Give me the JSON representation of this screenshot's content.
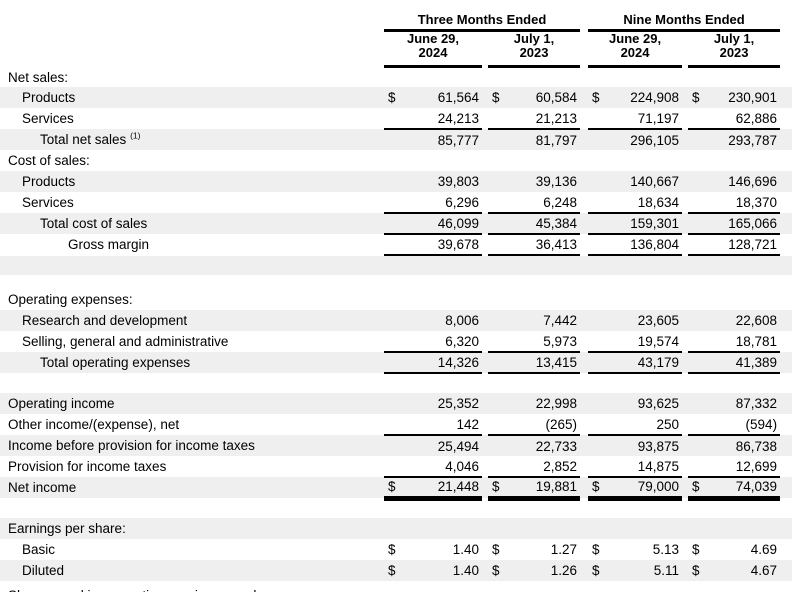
{
  "table": {
    "currency_symbol": "$",
    "period_groups": [
      "Three Months Ended",
      "Nine Months Ended"
    ],
    "column_headers": [
      "June 29,\n2024",
      "July 1,\n2023",
      "June 29,\n2024",
      "July 1,\n2023"
    ],
    "colors": {
      "row_shade": "#efefef",
      "rule": "#000000",
      "text": "#000000",
      "background": "#ffffff"
    },
    "rows": [
      {
        "kind": "section",
        "label": "Net sales:",
        "indent": 0,
        "shaded": false
      },
      {
        "kind": "data",
        "label": "Products",
        "indent": 1,
        "shaded": true,
        "dollar": true,
        "underline": "none",
        "values": [
          "61,564",
          "60,584",
          "224,908",
          "230,901"
        ]
      },
      {
        "kind": "data",
        "label": "Services",
        "indent": 1,
        "shaded": false,
        "dollar": false,
        "underline": "single",
        "values": [
          "24,213",
          "21,213",
          "71,197",
          "62,886"
        ]
      },
      {
        "kind": "data",
        "label": "Total net sales",
        "footnote": "(1)",
        "indent": 2,
        "shaded": true,
        "dollar": false,
        "underline": "none",
        "values": [
          "85,777",
          "81,797",
          "296,105",
          "293,787"
        ]
      },
      {
        "kind": "section",
        "label": "Cost of sales:",
        "indent": 0,
        "shaded": false
      },
      {
        "kind": "data",
        "label": "Products",
        "indent": 1,
        "shaded": true,
        "dollar": false,
        "underline": "none",
        "values": [
          "39,803",
          "39,136",
          "140,667",
          "146,696"
        ]
      },
      {
        "kind": "data",
        "label": "Services",
        "indent": 1,
        "shaded": false,
        "dollar": false,
        "underline": "single",
        "values": [
          "6,296",
          "6,248",
          "18,634",
          "18,370"
        ]
      },
      {
        "kind": "data",
        "label": "Total cost of sales",
        "indent": 2,
        "shaded": true,
        "dollar": false,
        "underline": "single",
        "values": [
          "46,099",
          "45,384",
          "159,301",
          "165,066"
        ]
      },
      {
        "kind": "data",
        "label": "Gross margin",
        "indent": 3,
        "shaded": false,
        "dollar": false,
        "underline": "single",
        "values": [
          "39,678",
          "36,413",
          "136,804",
          "128,721"
        ]
      },
      {
        "kind": "blank",
        "label": "",
        "shaded": true
      },
      {
        "kind": "spacer",
        "label": "",
        "shaded": false
      },
      {
        "kind": "section",
        "label": "Operating expenses:",
        "indent": 0,
        "shaded": false
      },
      {
        "kind": "data",
        "label": "Research and development",
        "indent": 1,
        "shaded": true,
        "dollar": false,
        "underline": "none",
        "values": [
          "8,006",
          "7,442",
          "23,605",
          "22,608"
        ]
      },
      {
        "kind": "data",
        "label": "Selling, general and administrative",
        "indent": 1,
        "shaded": false,
        "dollar": false,
        "underline": "single",
        "values": [
          "6,320",
          "5,973",
          "19,574",
          "18,781"
        ]
      },
      {
        "kind": "data",
        "label": "Total operating expenses",
        "indent": 2,
        "shaded": true,
        "dollar": false,
        "underline": "single",
        "values": [
          "14,326",
          "13,415",
          "43,179",
          "41,389"
        ]
      },
      {
        "kind": "blank",
        "label": "",
        "shaded": false
      },
      {
        "kind": "data",
        "label": "Operating income",
        "indent": 0,
        "shaded": true,
        "dollar": false,
        "underline": "none",
        "values": [
          "25,352",
          "22,998",
          "93,625",
          "87,332"
        ]
      },
      {
        "kind": "data",
        "label": "Other income/(expense), net",
        "indent": 0,
        "shaded": false,
        "dollar": false,
        "underline": "single",
        "values": [
          "142",
          "(265)",
          "250",
          "(594)"
        ]
      },
      {
        "kind": "data",
        "label": "Income before provision for income taxes",
        "indent": 0,
        "shaded": true,
        "dollar": false,
        "underline": "none",
        "values": [
          "25,494",
          "22,733",
          "93,875",
          "86,738"
        ]
      },
      {
        "kind": "data",
        "label": "Provision for income taxes",
        "indent": 0,
        "shaded": false,
        "dollar": false,
        "underline": "single",
        "values": [
          "4,046",
          "2,852",
          "14,875",
          "12,699"
        ]
      },
      {
        "kind": "data",
        "label": "Net income",
        "indent": 0,
        "shaded": true,
        "dollar": true,
        "underline": "double",
        "values": [
          "21,448",
          "19,881",
          "79,000",
          "74,039"
        ]
      },
      {
        "kind": "blank",
        "label": "",
        "shaded": false
      },
      {
        "kind": "section",
        "label": "Earnings per share:",
        "indent": 0,
        "shaded": true
      },
      {
        "kind": "data",
        "label": "Basic",
        "indent": 1,
        "shaded": false,
        "dollar": true,
        "underline": "none",
        "values": [
          "1.40",
          "1.27",
          "5.13",
          "4.69"
        ]
      },
      {
        "kind": "data",
        "label": "Diluted",
        "indent": 1,
        "shaded": true,
        "dollar": true,
        "underline": "none",
        "values": [
          "1.40",
          "1.26",
          "5.11",
          "4.67"
        ]
      },
      {
        "kind": "clipped",
        "label": "Shares used in computing earnings per share:",
        "indent": 0,
        "shaded": false
      }
    ]
  }
}
